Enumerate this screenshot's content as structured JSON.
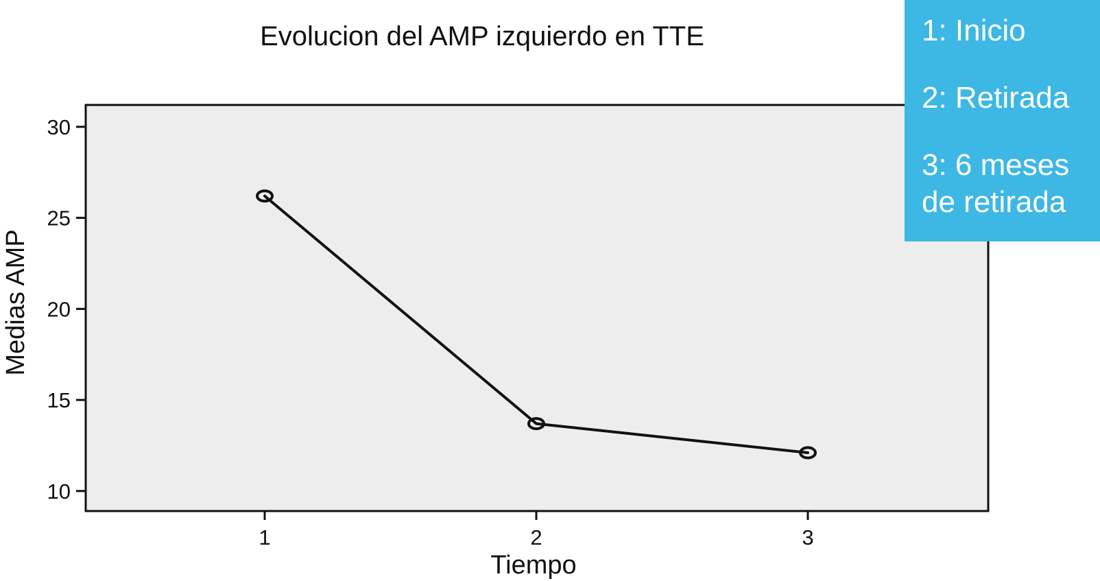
{
  "chart_data": {
    "type": "line",
    "title": "Evolucion del AMP izquierdo en TTE",
    "xlabel": "Tiempo",
    "ylabel": "Medias AMP",
    "categories": [
      "1",
      "2",
      "3"
    ],
    "series": [
      {
        "values": [
          26.2,
          13.7,
          12.1
        ]
      }
    ],
    "ylim": [
      8.9,
      31.2
    ],
    "yticks": [
      "10",
      "15",
      "20",
      "25",
      "30"
    ],
    "grid": false,
    "marker": "circle",
    "background_color": "#ededed",
    "line_color": "#111111"
  },
  "legend": {
    "background_color": "#3db7e4",
    "items": [
      {
        "lines": [
          "1: Inicio"
        ]
      },
      {
        "lines": [
          "2: Retirada"
        ]
      },
      {
        "lines": [
          "3: 6 meses",
          "de retirada"
        ]
      }
    ]
  }
}
